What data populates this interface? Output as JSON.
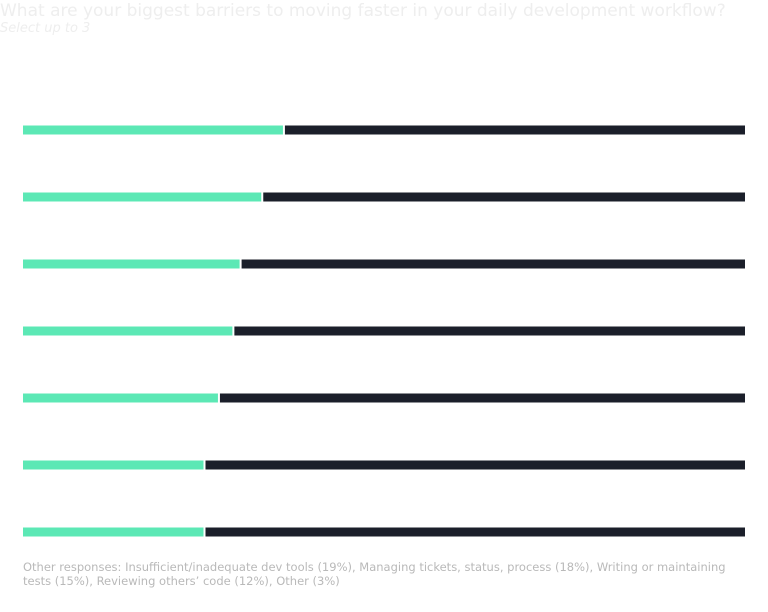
{
  "chart_data": {
    "type": "progress_bar",
    "title": "What are your biggest barriers to moving faster in your daily development workflow?",
    "subtitle": "Select up to 3",
    "categories": [
      null,
      null,
      null,
      null,
      null,
      null,
      null
    ],
    "values": [
      36,
      33,
      30,
      29,
      27,
      25,
      25
    ],
    "color": "#5ce8b5",
    "track_color": "#1b1f2a",
    "xlim": [
      0,
      100
    ],
    "note": "Other responses: Insufficient/inadequate dev tools (19%), Managing tickets, status, process (18%), Writing or maintaining tests (15%), Reviewing others’ code (12%), Other (3%)"
  }
}
